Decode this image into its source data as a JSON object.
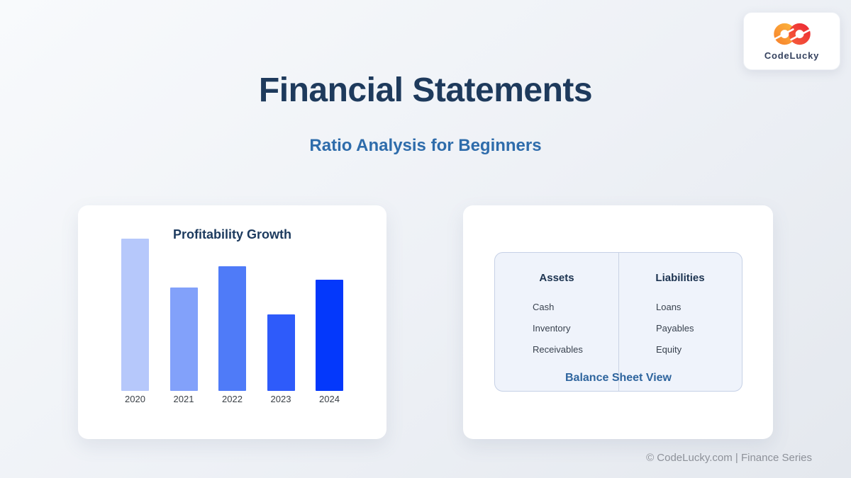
{
  "page": {
    "title": "Financial Statements",
    "subtitle": "Ratio Analysis for Beginners",
    "footer": "© CodeLucky.com | Finance Series"
  },
  "logo": {
    "text": "CodeLucky",
    "gradient_start": "#fbaa3a",
    "gradient_end": "#ed2f35"
  },
  "chart_data": {
    "type": "bar",
    "title": "Profitability Growth",
    "categories": [
      "2020",
      "2021",
      "2022",
      "2023",
      "2024"
    ],
    "values": [
      100,
      68,
      82,
      50,
      73
    ],
    "bar_colors": [
      "#b6c8fb",
      "#82a1fa",
      "#4f7bf8",
      "#2e5bfa",
      "#0438fb"
    ],
    "xlabel": "",
    "ylabel": "",
    "ylim": [
      0,
      100
    ],
    "grid": false,
    "legend": false,
    "value_labels_shown": false
  },
  "balance_sheet": {
    "caption": "Balance Sheet View",
    "columns": [
      {
        "header": "Assets",
        "items": [
          "Cash",
          "Inventory",
          "Receivables"
        ]
      },
      {
        "header": "Liabilities",
        "items": [
          "Loans",
          "Payables",
          "Equity"
        ]
      }
    ]
  },
  "colors": {
    "title_text": "#1e3a5c",
    "subtitle_text": "#2e6cab",
    "caption_accent": "#2f659e",
    "footer_text": "#8d9199",
    "card_background": "#ffffff",
    "sheet_box_background": "#eff3fb",
    "sheet_box_border": "#c6d1e6"
  }
}
